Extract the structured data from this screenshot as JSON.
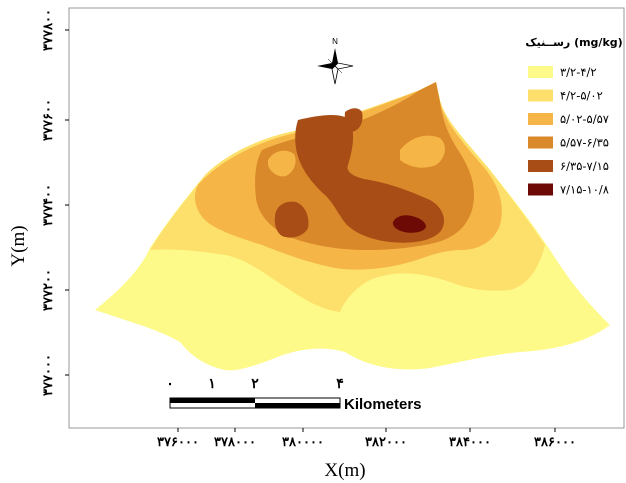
{
  "axes": {
    "x_label": "X(m)",
    "y_label": "Y(m)",
    "x_ticks": [
      "۳۷۶۰۰۰",
      "۳۷۸۰۰۰",
      "۳۸۰۰۰۰",
      "۳۸۲۰۰۰",
      "۳۸۴۰۰۰",
      "۳۸۶۰۰۰"
    ],
    "y_ticks": [
      "۳۷۷۸۰۰",
      "۳۷۷۶۰۰",
      "۳۷۷۴۰۰",
      "۳۷۷۲۰۰",
      "۳۷۷۰۰۰"
    ]
  },
  "legend": {
    "title": "رســنیک  (mg/kg)",
    "classes": [
      {
        "label": "۳/۲-۴/۲",
        "color": "#fefa8a"
      },
      {
        "label": "۴/۲-۵/۰۲",
        "color": "#fde06c"
      },
      {
        "label": "۵/۰۲-۵/۵۷",
        "color": "#f6b647"
      },
      {
        "label": "۵/۵۷-۶/۳۵",
        "color": "#d9882a"
      },
      {
        "label": "۶/۳۵-۷/۱۵",
        "color": "#a84d16"
      },
      {
        "label": "۷/۱۵-۱۰/۸",
        "color": "#6e0a05"
      }
    ]
  },
  "north_arrow": {
    "label": "N"
  },
  "scale_bar": {
    "ticks": [
      "۰",
      "۱",
      "۲",
      "۴"
    ],
    "unit": "Kilometers"
  }
}
